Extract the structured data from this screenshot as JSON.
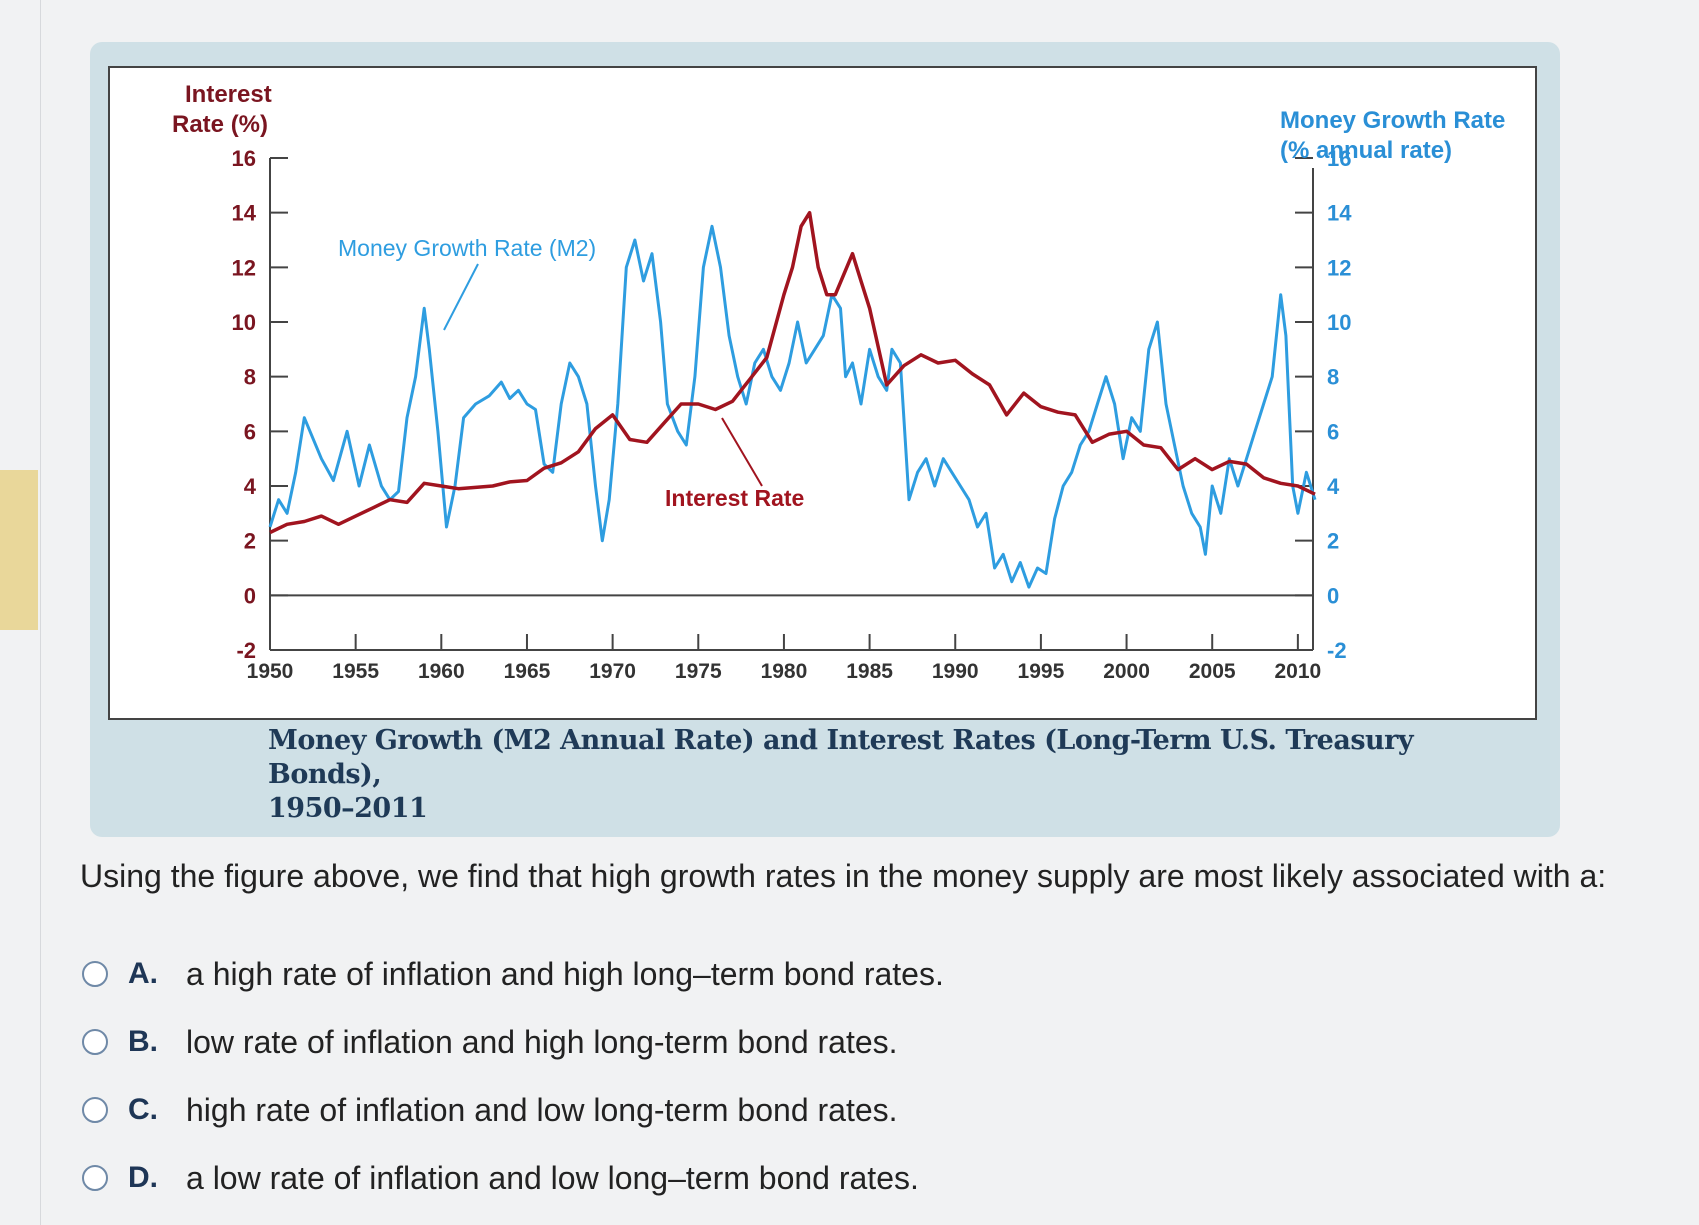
{
  "figure": {
    "caption_line1": "Money Growth (M2 Annual Rate) and Interest Rates (Long-Term U.S. Treasury Bonds),",
    "caption_line2": "1950–2011"
  },
  "chart_data": {
    "type": "line",
    "left_axis_title_line1": "Interest",
    "left_axis_title_line2": "Rate (%)",
    "right_axis_title_line1": "Money Growth Rate",
    "right_axis_title_line2": "(% annual rate)",
    "ylim": [
      -2,
      16
    ],
    "y_ticks": [
      16,
      14,
      12,
      10,
      8,
      6,
      4,
      2,
      0,
      -2
    ],
    "x_ticks": [
      1950,
      1955,
      1960,
      1965,
      1970,
      1975,
      1980,
      1985,
      1990,
      1995,
      2000,
      2005,
      2010
    ],
    "xlim": [
      1950,
      2011
    ],
    "annotations": [
      "Money Growth Rate (M2)",
      "Interest Rate"
    ],
    "colors": {
      "money": "#2e9de0",
      "interest": "#a1141f",
      "left_axis": "#7a1520",
      "right_axis": "#2a8fd6"
    },
    "series": [
      {
        "name": "Money Growth Rate (M2)",
        "x": [
          1950,
          1950.5,
          1951,
          1951.5,
          1952,
          1953,
          1953.7,
          1954.5,
          1955.2,
          1955.8,
          1956.5,
          1957,
          1957.5,
          1958,
          1958.5,
          1959,
          1959.3,
          1959.8,
          1960.3,
          1960.8,
          1961.3,
          1962,
          1962.8,
          1963.5,
          1964,
          1964.5,
          1965,
          1965.5,
          1966,
          1966.5,
          1967,
          1967.5,
          1968,
          1968.5,
          1969,
          1969.4,
          1969.8,
          1970.3,
          1970.8,
          1971.3,
          1971.8,
          1972.3,
          1972.8,
          1973.2,
          1973.8,
          1974.3,
          1974.8,
          1975.3,
          1975.8,
          1976.3,
          1976.8,
          1977.3,
          1977.8,
          1978.3,
          1978.8,
          1979.3,
          1979.8,
          1980.3,
          1980.8,
          1981.3,
          1981.8,
          1982.3,
          1982.8,
          1983.3,
          1983.6,
          1984,
          1984.5,
          1985,
          1985.5,
          1986,
          1986.3,
          1986.8,
          1987.3,
          1987.8,
          1988.3,
          1988.8,
          1989.3,
          1989.8,
          1990.3,
          1990.8,
          1991.3,
          1991.8,
          1992.3,
          1992.8,
          1993.3,
          1993.8,
          1994.3,
          1994.8,
          1995.3,
          1995.8,
          1996.3,
          1996.8,
          1997.3,
          1997.8,
          1998.3,
          1998.8,
          1999.3,
          1999.8,
          2000.3,
          2000.8,
          2001.3,
          2001.8,
          2002.3,
          2002.8,
          2003.3,
          2003.8,
          2004.3,
          2004.6,
          2005,
          2005.5,
          2006,
          2006.5,
          2007,
          2007.5,
          2008,
          2008.5,
          2009,
          2009.3,
          2009.7,
          2010,
          2010.5,
          2011
        ],
        "values": [
          2.5,
          3.5,
          3.0,
          4.5,
          6.5,
          5.0,
          4.2,
          6.0,
          4.0,
          5.5,
          4.0,
          3.5,
          3.8,
          6.5,
          8.0,
          10.5,
          9.0,
          6.0,
          2.5,
          4.0,
          6.5,
          7.0,
          7.3,
          7.8,
          7.2,
          7.5,
          7.0,
          6.8,
          4.8,
          4.5,
          7.0,
          8.5,
          8.0,
          7.0,
          4.0,
          2.0,
          3.5,
          7.0,
          12.0,
          13.0,
          11.5,
          12.5,
          10.0,
          7.0,
          6.0,
          5.5,
          8.0,
          12.0,
          13.5,
          12.0,
          9.5,
          8.0,
          7.0,
          8.5,
          9.0,
          8.0,
          7.5,
          8.5,
          10.0,
          8.5,
          9.0,
          9.5,
          11.0,
          10.5,
          8.0,
          8.5,
          7.0,
          9.0,
          8.0,
          7.5,
          9.0,
          8.5,
          3.5,
          4.5,
          5.0,
          4.0,
          5.0,
          4.5,
          4.0,
          3.5,
          2.5,
          3.0,
          1.0,
          1.5,
          0.5,
          1.2,
          0.3,
          1.0,
          0.8,
          2.8,
          4.0,
          4.5,
          5.5,
          6.0,
          7.0,
          8.0,
          7.0,
          5.0,
          6.5,
          6.0,
          9.0,
          10.0,
          7.0,
          5.5,
          4.0,
          3.0,
          2.5,
          1.5,
          4.0,
          3.0,
          5.0,
          4.0,
          5.0,
          6.0,
          7.0,
          8.0,
          11.0,
          9.5,
          4.0,
          3.0,
          4.5,
          3.5
        ]
      },
      {
        "name": "Interest Rate",
        "x": [
          1950,
          1951,
          1952,
          1953,
          1954,
          1955,
          1956,
          1957,
          1958,
          1959,
          1960,
          1961,
          1962,
          1963,
          1964,
          1965,
          1966,
          1967,
          1968,
          1969,
          1970,
          1971,
          1972,
          1973,
          1974,
          1975,
          1976,
          1977,
          1978,
          1979,
          1980,
          1980.5,
          1981,
          1981.5,
          1982,
          1982.5,
          1983,
          1984,
          1984.5,
          1985,
          1986,
          1987,
          1988,
          1989,
          1990,
          1991,
          1992,
          1993,
          1994,
          1995,
          1996,
          1997,
          1998,
          1999,
          2000,
          2001,
          2002,
          2003,
          2004,
          2005,
          2006,
          2007,
          2008,
          2009,
          2010,
          2011
        ],
        "values": [
          2.3,
          2.6,
          2.7,
          2.9,
          2.6,
          2.9,
          3.2,
          3.5,
          3.4,
          4.1,
          4.0,
          3.9,
          3.95,
          4.0,
          4.15,
          4.2,
          4.65,
          4.85,
          5.25,
          6.1,
          6.6,
          5.7,
          5.6,
          6.3,
          7.0,
          7.0,
          6.8,
          7.1,
          7.9,
          8.7,
          11.0,
          12.0,
          13.5,
          14.0,
          12.0,
          11.0,
          11.0,
          12.5,
          11.5,
          10.5,
          7.7,
          8.4,
          8.8,
          8.5,
          8.6,
          8.1,
          7.7,
          6.6,
          7.4,
          6.9,
          6.7,
          6.6,
          5.6,
          5.9,
          6.0,
          5.5,
          5.4,
          4.6,
          5.0,
          4.6,
          4.9,
          4.8,
          4.3,
          4.1,
          4.0,
          3.7
        ]
      }
    ]
  },
  "question": {
    "text": "Using the figure above, we find that high growth rates in the money supply are most likely associated with a:"
  },
  "options": [
    {
      "letter": "A.",
      "text": "a high rate of inflation and high long–term bond rates."
    },
    {
      "letter": "B.",
      "text": "low rate of inflation and high long-term bond rates."
    },
    {
      "letter": "C.",
      "text": "high rate of inflation and low long-term bond rates."
    },
    {
      "letter": "D.",
      "text": "a low rate of inflation and low long–term bond rates."
    }
  ]
}
